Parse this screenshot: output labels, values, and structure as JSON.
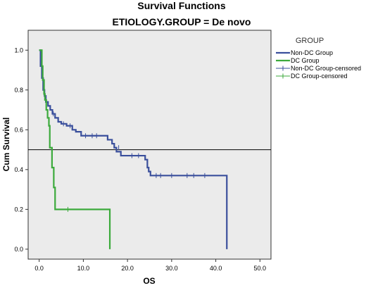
{
  "chart_data": {
    "type": "line",
    "title": "Survival Functions",
    "subtitle": "ETIOLOGY.GROUP = De novo",
    "xlabel": "OS",
    "ylabel": "Cum Survival",
    "xlim": [
      -2.5,
      52.5
    ],
    "ylim": [
      -0.05,
      1.1
    ],
    "x_ticks": [
      0.0,
      10.0,
      20.0,
      30.0,
      40.0,
      50.0
    ],
    "x_tick_labels": [
      "0.0",
      "10.0",
      "20.0",
      "30.0",
      "40.0",
      "50.0"
    ],
    "y_ticks": [
      0.0,
      0.2,
      0.4,
      0.6,
      0.8,
      1.0
    ],
    "y_tick_labels": [
      "0.0",
      "0.2",
      "0.4",
      "0.6",
      "0.8",
      "1.0"
    ],
    "reference_line_y": 0.5,
    "legend": {
      "title": "GROUP",
      "position": "right"
    },
    "series": [
      {
        "name": "Non-DC Group",
        "color": "#3a4f9c",
        "steps": [
          [
            0,
            1.0
          ],
          [
            0.3,
            0.92
          ],
          [
            0.6,
            0.86
          ],
          [
            0.9,
            0.8
          ],
          [
            1.2,
            0.77
          ],
          [
            1.5,
            0.74
          ],
          [
            2.0,
            0.72
          ],
          [
            2.5,
            0.7
          ],
          [
            3.0,
            0.68
          ],
          [
            3.6,
            0.66
          ],
          [
            4.3,
            0.64
          ],
          [
            5.0,
            0.63
          ],
          [
            6.2,
            0.62
          ],
          [
            7.5,
            0.6
          ],
          [
            8.3,
            0.59
          ],
          [
            9.5,
            0.57
          ],
          [
            15.5,
            0.55
          ],
          [
            16.5,
            0.53
          ],
          [
            17.0,
            0.51
          ],
          [
            17.5,
            0.49
          ],
          [
            18.5,
            0.47
          ],
          [
            24.0,
            0.45
          ],
          [
            24.5,
            0.41
          ],
          [
            24.8,
            0.39
          ],
          [
            25.2,
            0.37
          ],
          [
            42.5,
            0.0
          ]
        ],
        "end_x": 42.5,
        "censored": [
          [
            3.2,
            0.68
          ],
          [
            5.5,
            0.63
          ],
          [
            7.0,
            0.62
          ],
          [
            10.5,
            0.57
          ],
          [
            12.0,
            0.57
          ],
          [
            13.0,
            0.57
          ],
          [
            18.0,
            0.51
          ],
          [
            21.0,
            0.47
          ],
          [
            22.5,
            0.47
          ],
          [
            26.5,
            0.37
          ],
          [
            27.5,
            0.37
          ],
          [
            30.0,
            0.37
          ],
          [
            33.5,
            0.37
          ],
          [
            35.0,
            0.37
          ],
          [
            37.5,
            0.37
          ]
        ]
      },
      {
        "name": "DC Group",
        "color": "#3caa3c",
        "steps": [
          [
            0,
            1.0
          ],
          [
            0.6,
            0.92
          ],
          [
            0.8,
            0.85
          ],
          [
            1.1,
            0.78
          ],
          [
            1.3,
            0.75
          ],
          [
            1.6,
            0.7
          ],
          [
            1.9,
            0.66
          ],
          [
            2.2,
            0.62
          ],
          [
            2.4,
            0.51
          ],
          [
            2.9,
            0.41
          ],
          [
            3.3,
            0.31
          ],
          [
            3.6,
            0.2
          ],
          [
            16.0,
            0.0
          ]
        ],
        "end_x": 16.0,
        "censored": [
          [
            6.5,
            0.2
          ]
        ]
      },
      {
        "name": "Non-DC Group-censored",
        "color": "#3a4f9c"
      },
      {
        "name": "DC Group-censored",
        "color": "#3caa3c"
      }
    ]
  }
}
